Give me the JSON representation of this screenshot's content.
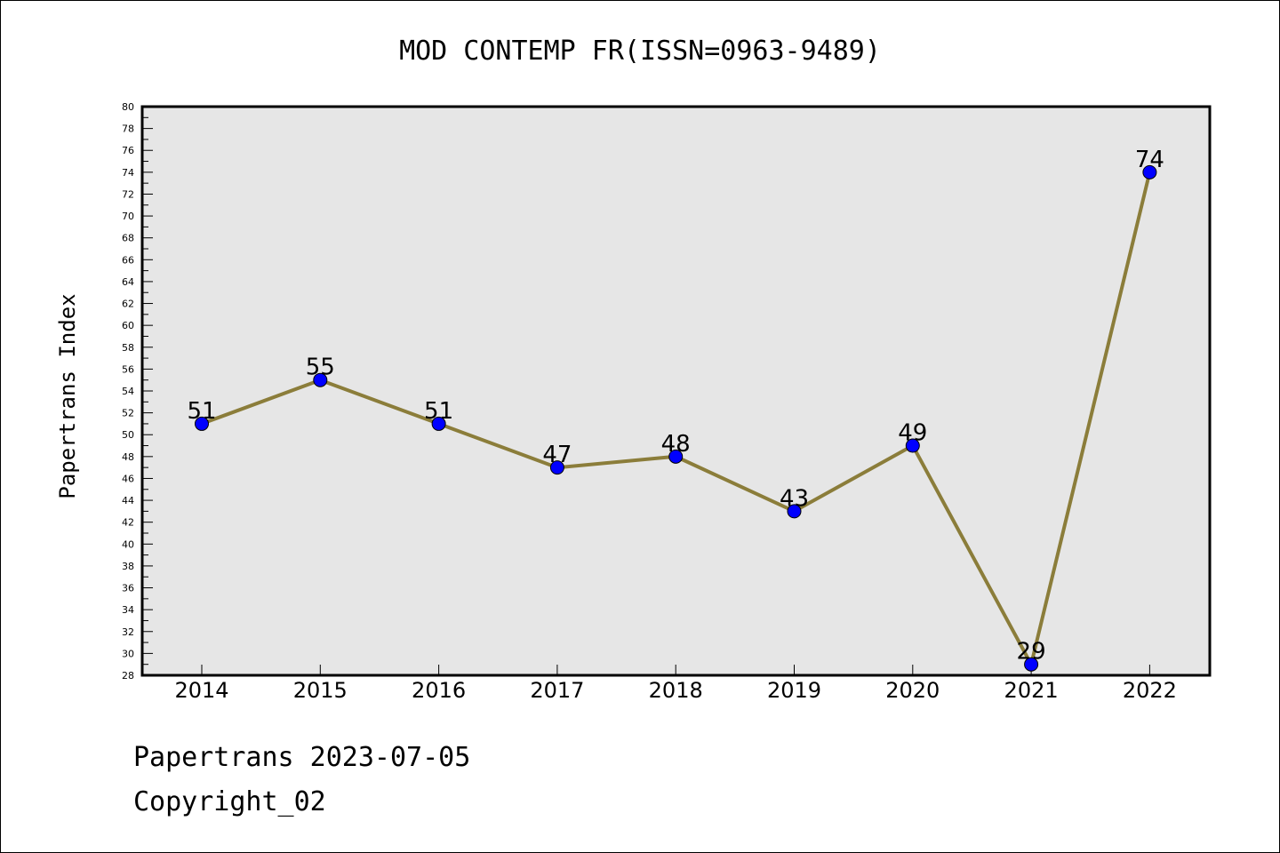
{
  "chart_data": {
    "type": "line",
    "title": "MOD CONTEMP FR(ISSN=0963-9489)",
    "xlabel": "",
    "ylabel": "Papertrans Index",
    "categories": [
      "2014",
      "2015",
      "2016",
      "2017",
      "2018",
      "2019",
      "2020",
      "2021",
      "2022"
    ],
    "series": [
      {
        "values": [
          51,
          55,
          51,
          47,
          48,
          43,
          49,
          29,
          74
        ]
      }
    ],
    "data_labels": [
      "51",
      "55",
      "51",
      "47",
      "48",
      "43",
      "49",
      "29",
      "74"
    ],
    "ylim": [
      28,
      80
    ],
    "yticks": [
      "28",
      "30",
      "32",
      "34",
      "36",
      "38",
      "40",
      "42",
      "44",
      "46",
      "48",
      "50",
      "52",
      "54",
      "56",
      "58",
      "60",
      "62",
      "64",
      "66",
      "68",
      "70",
      "72",
      "74",
      "76",
      "78",
      "80"
    ],
    "grid": false,
    "colors": {
      "plot_background": "#e6e6e6",
      "line": "#8b7d3a",
      "marker": "#0000ff"
    }
  },
  "footer": {
    "line1": "Papertrans 2023-07-05",
    "line2": "Copyright_02"
  }
}
